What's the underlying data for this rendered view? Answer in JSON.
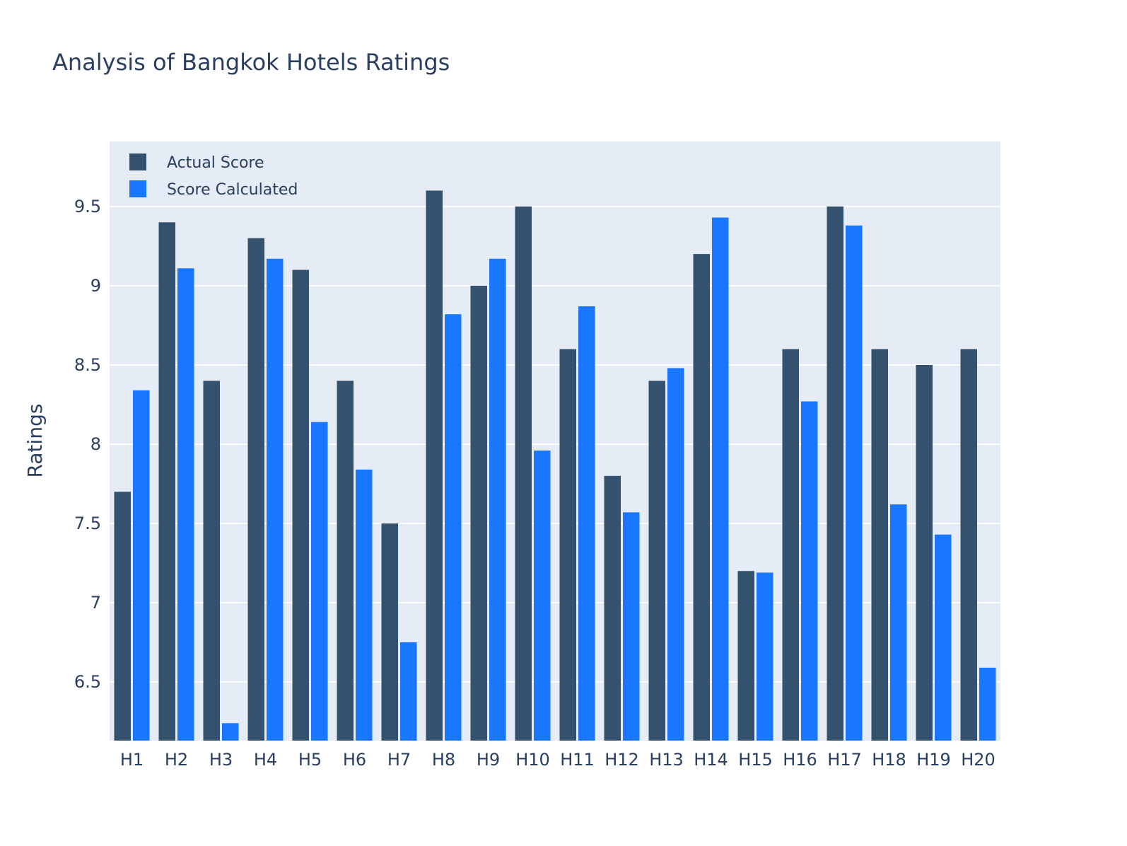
{
  "chart_data": {
    "type": "bar",
    "title": "Analysis of Bangkok Hotels Ratings",
    "xlabel": "",
    "ylabel": "Ratings",
    "categories": [
      "H1",
      "H2",
      "H3",
      "H4",
      "H5",
      "H6",
      "H7",
      "H8",
      "H9",
      "H10",
      "H11",
      "H12",
      "H13",
      "H14",
      "H15",
      "H16",
      "H17",
      "H18",
      "H19",
      "H20"
    ],
    "series": [
      {
        "name": "Actual Score",
        "color": "#34526e",
        "values": [
          7.7,
          9.4,
          8.4,
          9.3,
          9.1,
          8.4,
          7.5,
          9.6,
          9.0,
          9.5,
          8.6,
          7.8,
          8.4,
          9.2,
          7.2,
          8.6,
          9.5,
          8.6,
          8.5,
          8.6
        ]
      },
      {
        "name": "Score Calculated",
        "color": "#1976fe",
        "values": [
          8.34,
          9.11,
          6.24,
          9.17,
          8.14,
          7.84,
          6.75,
          8.82,
          9.17,
          7.96,
          8.87,
          7.57,
          8.48,
          9.43,
          7.19,
          8.27,
          9.38,
          7.62,
          7.43,
          6.59
        ]
      }
    ],
    "ylim": [
      6.13,
      9.91
    ],
    "yticks": [
      6.5,
      7,
      7.5,
      8,
      8.5,
      9,
      9.5
    ],
    "ytick_labels": [
      "6.5",
      "7",
      "7.5",
      "8",
      "8.5",
      "9",
      "9.5"
    ],
    "grid": true,
    "legend_position": "top-left",
    "plot_background": "#e5ecf6"
  }
}
